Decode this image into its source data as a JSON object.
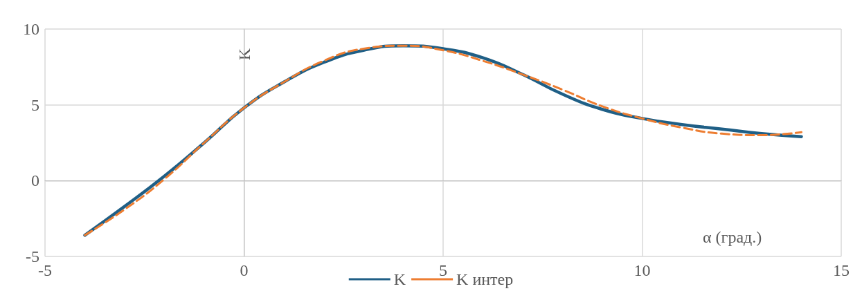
{
  "chart_data": {
    "type": "line",
    "xlabel": "α (град.)",
    "ylabel": "K",
    "x": [
      -4,
      -3,
      -2,
      -1,
      0,
      1,
      2,
      3,
      4,
      5,
      6,
      7,
      8,
      9,
      10,
      11,
      12,
      13,
      14
    ],
    "series": [
      {
        "name": "K",
        "color": "#1f5f86",
        "line_style": "solid",
        "values": [
          -3.6,
          -1.7,
          0.3,
          2.5,
          4.8,
          6.5,
          7.8,
          8.6,
          8.9,
          8.7,
          8.1,
          7.0,
          5.7,
          4.7,
          4.1,
          3.7,
          3.4,
          3.1,
          2.9
        ]
      },
      {
        "name": "K интер",
        "color": "#ed7d31",
        "line_style": "dashed",
        "values": [
          -3.6,
          -1.9,
          0.1,
          2.5,
          4.8,
          6.5,
          7.9,
          8.7,
          8.9,
          8.6,
          7.9,
          7.0,
          6.0,
          4.9,
          4.1,
          3.5,
          3.1,
          3.0,
          3.2
        ]
      }
    ],
    "xlim": [
      -5,
      15
    ],
    "xticks": [
      -5,
      0,
      5,
      10,
      15
    ],
    "ylim": [
      -5,
      10
    ],
    "yticks": [
      -5,
      0,
      5,
      10
    ],
    "grid": true,
    "legend": "bottom",
    "marker": "none"
  }
}
